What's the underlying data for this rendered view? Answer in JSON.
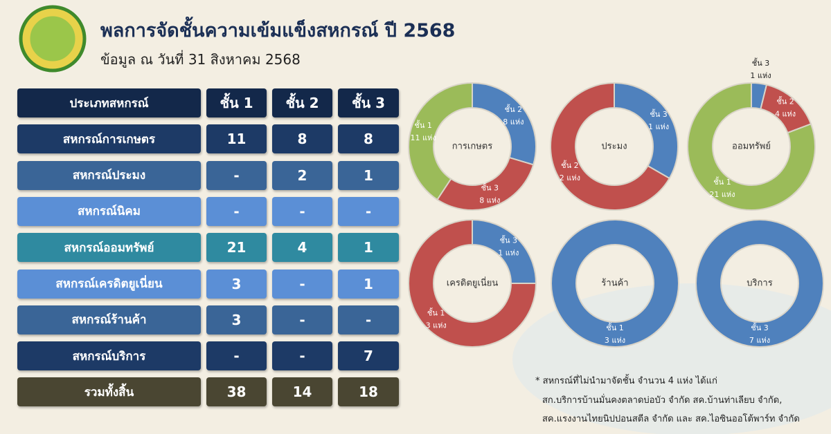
{
  "header": {
    "title": "พลการจัดชั้นความเข้มแข็งสหกรณ์ ปี 2568",
    "subtitle": "ข้อมูล ณ วันที่ 31 สิงหาคม 2568"
  },
  "table": {
    "header": [
      "ประเภทสหกรณ์",
      "ชั้น 1",
      "ชั้น 2",
      "ชั้น 3"
    ],
    "rows": [
      [
        "สหกรณ์การเกษตร",
        "11",
        "8",
        "8"
      ],
      [
        "สหกรณ์ประมง",
        "-",
        "2",
        "1"
      ],
      [
        "สหกรณ์นิคม",
        "-",
        "-",
        "-"
      ],
      [
        "สหกรณ์ออมทรัพย์",
        "21",
        "4",
        "1"
      ],
      [
        "สหกรณ์เครดิตยูเนี่ยน",
        "3",
        "-",
        "1"
      ],
      [
        "สหกรณ์ร้านค้า",
        "3",
        "-",
        "-"
      ],
      [
        "สหกรณ์บริการ",
        "-",
        "-",
        "7"
      ],
      [
        "รวมทั้งสิ้น",
        "38",
        "14",
        "18"
      ]
    ]
  },
  "chart_data": [
    {
      "type": "pie",
      "title": "การเกษตร",
      "categories": [
        "ชั้น 2",
        "ชั้น 3",
        "ชั้น 1"
      ],
      "values": [
        8,
        8,
        11
      ],
      "value_labels": [
        "8 แห่ง",
        "8 แห่ง",
        "11 แห่ง"
      ],
      "colors": [
        "#4f81bd",
        "#c0504d",
        "#9bbb59"
      ]
    },
    {
      "type": "pie",
      "title": "ประมง",
      "categories": [
        "ชั้น  3",
        "ชั้น 2"
      ],
      "values": [
        1,
        2
      ],
      "value_labels": [
        "1 แห่ง",
        "2 แห่ง"
      ],
      "colors": [
        "#4f81bd",
        "#c0504d"
      ]
    },
    {
      "type": "pie",
      "title": "ออมทรัพย์",
      "categories": [
        "ชั้น 3",
        "ชั้น 2",
        "ชั้น 1"
      ],
      "values": [
        1,
        4,
        21
      ],
      "value_labels": [
        "1 แห่ง",
        "4 แห่ง",
        "21 แห่ง"
      ],
      "colors": [
        "#4f81bd",
        "#c0504d",
        "#9bbb59"
      ]
    },
    {
      "type": "pie",
      "title": "เครดิตยูเนี่ยน",
      "categories": [
        "ชั้น 3",
        "ชั้น 1"
      ],
      "values": [
        1,
        3
      ],
      "value_labels": [
        "1 แห่ง",
        "3 แห่ง"
      ],
      "colors": [
        "#4f81bd",
        "#c0504d"
      ]
    },
    {
      "type": "pie",
      "title": "ร้านค้า",
      "categories": [
        "ชั้น 1"
      ],
      "values": [
        3
      ],
      "value_labels": [
        "3 แห่ง"
      ],
      "colors": [
        "#4f81bd"
      ]
    },
    {
      "type": "pie",
      "title": "บริการ",
      "categories": [
        "ชั้น 3"
      ],
      "values": [
        7
      ],
      "value_labels": [
        "7  แห่ง"
      ],
      "colors": [
        "#4f81bd"
      ]
    }
  ],
  "footnote": [
    "* สหกรณ์ที่ไม่นำมาจัดชั้น จำนวน 4 แห่ง ได้แก่",
    "สก.บริการบ้านมั่นคงตลาดบ่อบัว จำกัด สค.บ้านท่าเลียบ จำกัด,",
    "สค.แรงงานไทยนิปปอนสตีล จำกัด และ สค.ไอซินออโต้พาร์ท จำกัด"
  ]
}
